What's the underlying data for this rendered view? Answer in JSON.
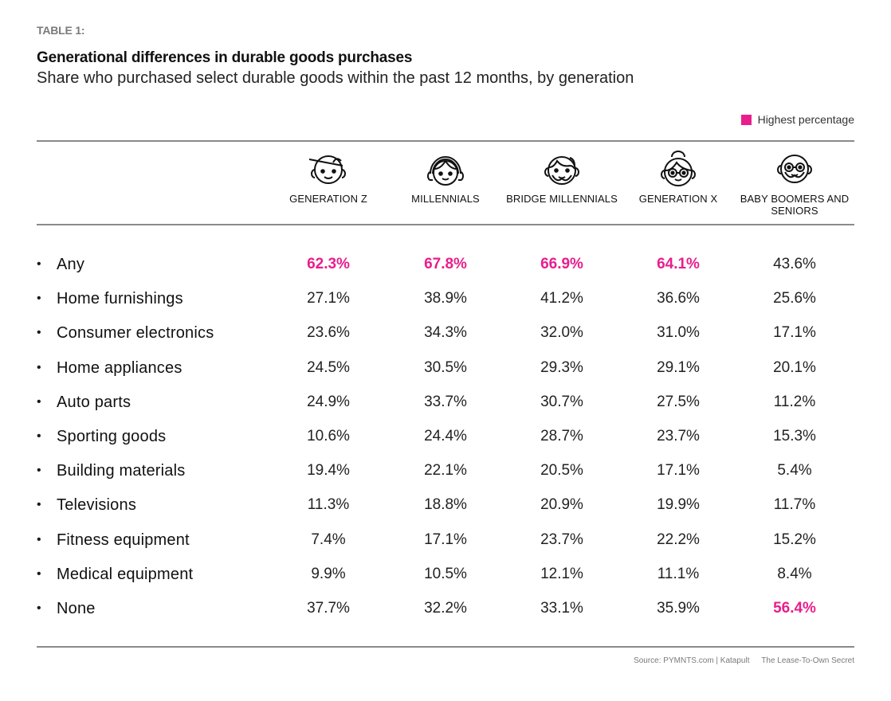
{
  "header": {
    "table_label": "TABLE 1:",
    "title": "Generational differences in durable goods purchases",
    "subtitle": "Share who purchased select durable goods within the past 12 months, by generation"
  },
  "legend": {
    "label": "Highest percentage",
    "color": "#e91e8c"
  },
  "footer": {
    "source": "Source: PYMNTS.com | Katapult",
    "report": "The Lease-To-Own Secret"
  },
  "chart_data": {
    "type": "table",
    "title": "Generational differences in durable goods purchases",
    "subtitle": "Share who purchased select durable goods within the past 12 months, by generation",
    "highlight_color": "#e91e8c",
    "highlight_meaning": "Highest percentage",
    "columns": [
      {
        "label": "GENERATION Z",
        "icon": "gen-z-face-icon"
      },
      {
        "label": "MILLENNIALS",
        "icon": "millennial-face-icon"
      },
      {
        "label": "BRIDGE MILLENNIALS",
        "icon": "bridge-millennial-face-icon"
      },
      {
        "label": "GENERATION X",
        "icon": "gen-x-face-icon"
      },
      {
        "label": "BABY BOOMERS AND SENIORS",
        "icon": "boomer-face-icon"
      }
    ],
    "rows": [
      {
        "label": "Any",
        "values": [
          "62.3%",
          "67.8%",
          "66.9%",
          "64.1%",
          "43.6%"
        ],
        "highest": [
          true,
          true,
          true,
          true,
          false
        ]
      },
      {
        "label": "Home furnishings",
        "values": [
          "27.1%",
          "38.9%",
          "41.2%",
          "36.6%",
          "25.6%"
        ],
        "highest": [
          false,
          false,
          false,
          false,
          false
        ]
      },
      {
        "label": "Consumer electronics",
        "values": [
          "23.6%",
          "34.3%",
          "32.0%",
          "31.0%",
          "17.1%"
        ],
        "highest": [
          false,
          false,
          false,
          false,
          false
        ]
      },
      {
        "label": "Home appliances",
        "values": [
          "24.5%",
          "30.5%",
          "29.3%",
          "29.1%",
          "20.1%"
        ],
        "highest": [
          false,
          false,
          false,
          false,
          false
        ]
      },
      {
        "label": "Auto parts",
        "values": [
          "24.9%",
          "33.7%",
          "30.7%",
          "27.5%",
          "11.2%"
        ],
        "highest": [
          false,
          false,
          false,
          false,
          false
        ]
      },
      {
        "label": "Sporting goods",
        "values": [
          "10.6%",
          "24.4%",
          "28.7%",
          "23.7%",
          "15.3%"
        ],
        "highest": [
          false,
          false,
          false,
          false,
          false
        ]
      },
      {
        "label": "Building materials",
        "values": [
          "19.4%",
          "22.1%",
          "20.5%",
          "17.1%",
          "5.4%"
        ],
        "highest": [
          false,
          false,
          false,
          false,
          false
        ]
      },
      {
        "label": "Televisions",
        "values": [
          "11.3%",
          "18.8%",
          "20.9%",
          "19.9%",
          "11.7%"
        ],
        "highest": [
          false,
          false,
          false,
          false,
          false
        ]
      },
      {
        "label": "Fitness equipment",
        "values": [
          "7.4%",
          "17.1%",
          "23.7%",
          "22.2%",
          "15.2%"
        ],
        "highest": [
          false,
          false,
          false,
          false,
          false
        ]
      },
      {
        "label": "Medical equipment",
        "values": [
          "9.9%",
          "10.5%",
          "12.1%",
          "11.1%",
          "8.4%"
        ],
        "highest": [
          false,
          false,
          false,
          false,
          false
        ]
      },
      {
        "label": "None",
        "values": [
          "37.7%",
          "32.2%",
          "33.1%",
          "35.9%",
          "56.4%"
        ],
        "highest": [
          false,
          false,
          false,
          false,
          true
        ]
      }
    ]
  }
}
